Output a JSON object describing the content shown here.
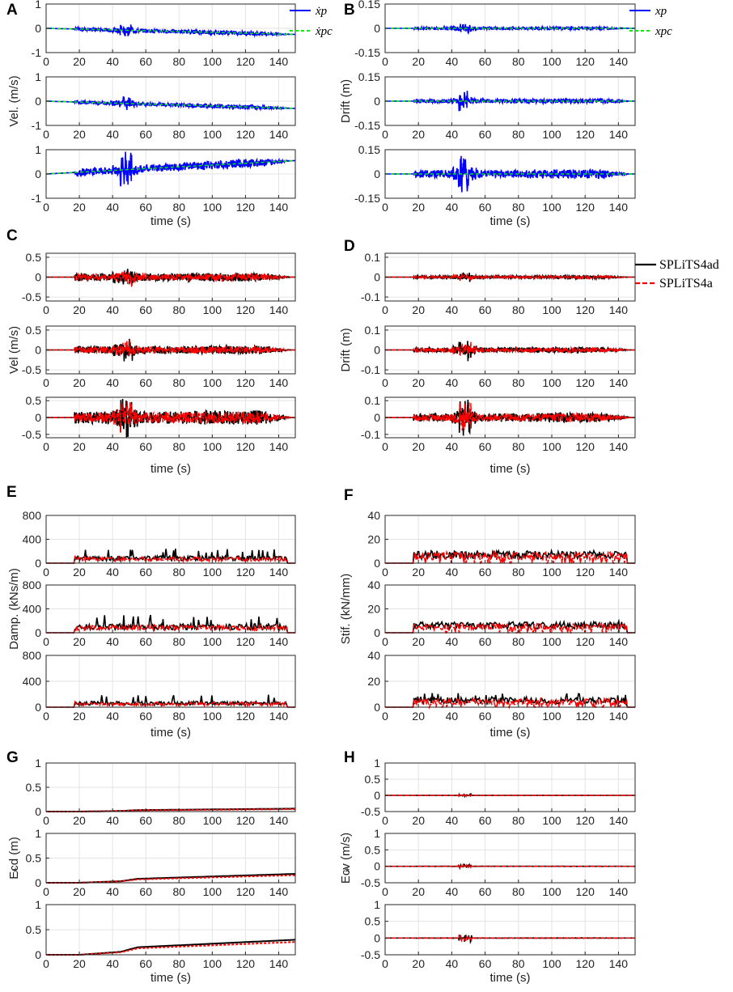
{
  "colors": {
    "blue": "#0000ff",
    "green": "#00ee00",
    "black": "#000000",
    "red": "#ff0000",
    "grid": "#e3e3e3"
  },
  "x_ticks": [
    "0",
    "20",
    "40",
    "60",
    "80",
    "100",
    "120",
    "140"
  ],
  "x_label": "time (s)",
  "chart_data": [
    {
      "panel": "A",
      "type": "line",
      "ylabel": "Vel. (m/s)",
      "xlim": [
        0,
        150
      ],
      "ylim": [
        -1,
        1
      ],
      "y_ticks": [
        "1",
        "0",
        "-1"
      ],
      "legend": [
        "ẋp",
        "ẋpc"
      ],
      "colors": [
        "blue",
        "green"
      ],
      "show_xlabel": true,
      "subplots": [
        {
          "amp": 0.12,
          "trend_end": -0.25,
          "spike": 0.25
        },
        {
          "amp": 0.12,
          "trend_end": -0.3,
          "spike": 0.3
        },
        {
          "amp": 0.25,
          "trend_end": 0.55,
          "spike": 0.75
        }
      ]
    },
    {
      "panel": "B",
      "type": "line",
      "ylabel": "Drift (m)",
      "xlim": [
        0,
        150
      ],
      "ylim": [
        -0.15,
        0.15
      ],
      "y_ticks": [
        "0.15",
        "0",
        "-0.15"
      ],
      "legend": [
        "xp",
        "xpc"
      ],
      "colors": [
        "blue",
        "green"
      ],
      "show_xlabel": true,
      "subplots": [
        {
          "amp": 0.012,
          "trend_end": 0,
          "spike": 0.03
        },
        {
          "amp": 0.02,
          "trend_end": 0,
          "spike": 0.065
        },
        {
          "amp": 0.04,
          "trend_end": 0,
          "spike": 0.12
        }
      ]
    },
    {
      "panel": "C",
      "type": "line",
      "ylabel": "Vel (m/s)",
      "xlim": [
        0,
        150
      ],
      "ylim": [
        -0.6,
        0.6
      ],
      "y_ticks": [
        "0.5",
        "0",
        "-0.5"
      ],
      "legend": [],
      "colors": [
        "black",
        "red"
      ],
      "show_xlabel": true,
      "subplots": [
        {
          "amp": 0.15,
          "trend_end": 0,
          "spike": 0.3
        },
        {
          "amp": 0.15,
          "trend_end": 0,
          "spike": 0.3
        },
        {
          "amp": 0.3,
          "trend_end": 0,
          "spike": 0.6
        }
      ]
    },
    {
      "panel": "D",
      "type": "line",
      "ylabel": "Drift (m)",
      "xlim": [
        0,
        150
      ],
      "ylim": [
        -0.12,
        0.12
      ],
      "y_ticks": [
        "0.1",
        "0",
        "-0.1"
      ],
      "legend": [
        "SPLiTS4ad",
        "SPLiTS4a"
      ],
      "colors": [
        "black",
        "red"
      ],
      "show_xlabel": true,
      "subplots": [
        {
          "amp": 0.01,
          "trend_end": 0,
          "spike": 0.025
        },
        {
          "amp": 0.02,
          "trend_end": 0,
          "spike": 0.06
        },
        {
          "amp": 0.04,
          "trend_end": 0,
          "spike": 0.11
        }
      ]
    },
    {
      "panel": "E",
      "type": "step",
      "ylabel": "Damp. (kNs/m)",
      "xlim": [
        0,
        150
      ],
      "ylim": [
        0,
        800
      ],
      "y_ticks": [
        "800",
        "400",
        "0"
      ],
      "legend": [],
      "colors": [
        "black",
        "red"
      ],
      "show_xlabel": true,
      "subplots": [
        {
          "base": 80,
          "spike": 250
        },
        {
          "base": 100,
          "spike": 300
        },
        {
          "base": 60,
          "spike": 200
        }
      ]
    },
    {
      "panel": "F",
      "type": "step",
      "ylabel": "Stif. (kN/mm)",
      "xlim": [
        0,
        150
      ],
      "ylim": [
        0,
        40
      ],
      "y_ticks": [
        "40",
        "20",
        "0"
      ],
      "legend": [],
      "colors": [
        "black",
        "red"
      ],
      "show_xlabel": true,
      "subplots": [
        {
          "base": 7,
          "spike": 9
        },
        {
          "base": 6,
          "spike": 10
        },
        {
          "base": 5,
          "spike": 11
        }
      ]
    },
    {
      "panel": "G",
      "type": "cumulative",
      "ylabel": "Ecd (m)",
      "ylabel_extra": "*",
      "xlim": [
        0,
        150
      ],
      "ylim": [
        0,
        1
      ],
      "y_ticks": [
        "1",
        "0.5",
        "0"
      ],
      "legend": [],
      "colors": [
        "black",
        "red"
      ],
      "show_xlabel": true,
      "subplots": [
        {
          "final": 0.06,
          "step": 0.03
        },
        {
          "final": 0.18,
          "step": 0.08
        },
        {
          "final": 0.3,
          "step": 0.15
        }
      ]
    },
    {
      "panel": "H",
      "type": "line",
      "ylabel": "Ecv (m/s)",
      "ylabel_extra": "*",
      "xlim": [
        0,
        150
      ],
      "ylim": [
        -0.5,
        1
      ],
      "y_ticks": [
        "1",
        "0.5",
        "0",
        "-0.5"
      ],
      "legend": [],
      "colors": [
        "black",
        "red"
      ],
      "show_xlabel": true,
      "subplots": [
        {
          "amp": 0.003,
          "trend_end": 0,
          "spike": 0.03
        },
        {
          "amp": 0.005,
          "trend_end": 0,
          "spike": 0.06
        },
        {
          "amp": 0.008,
          "trend_end": 0,
          "spike": 0.12
        }
      ]
    }
  ]
}
